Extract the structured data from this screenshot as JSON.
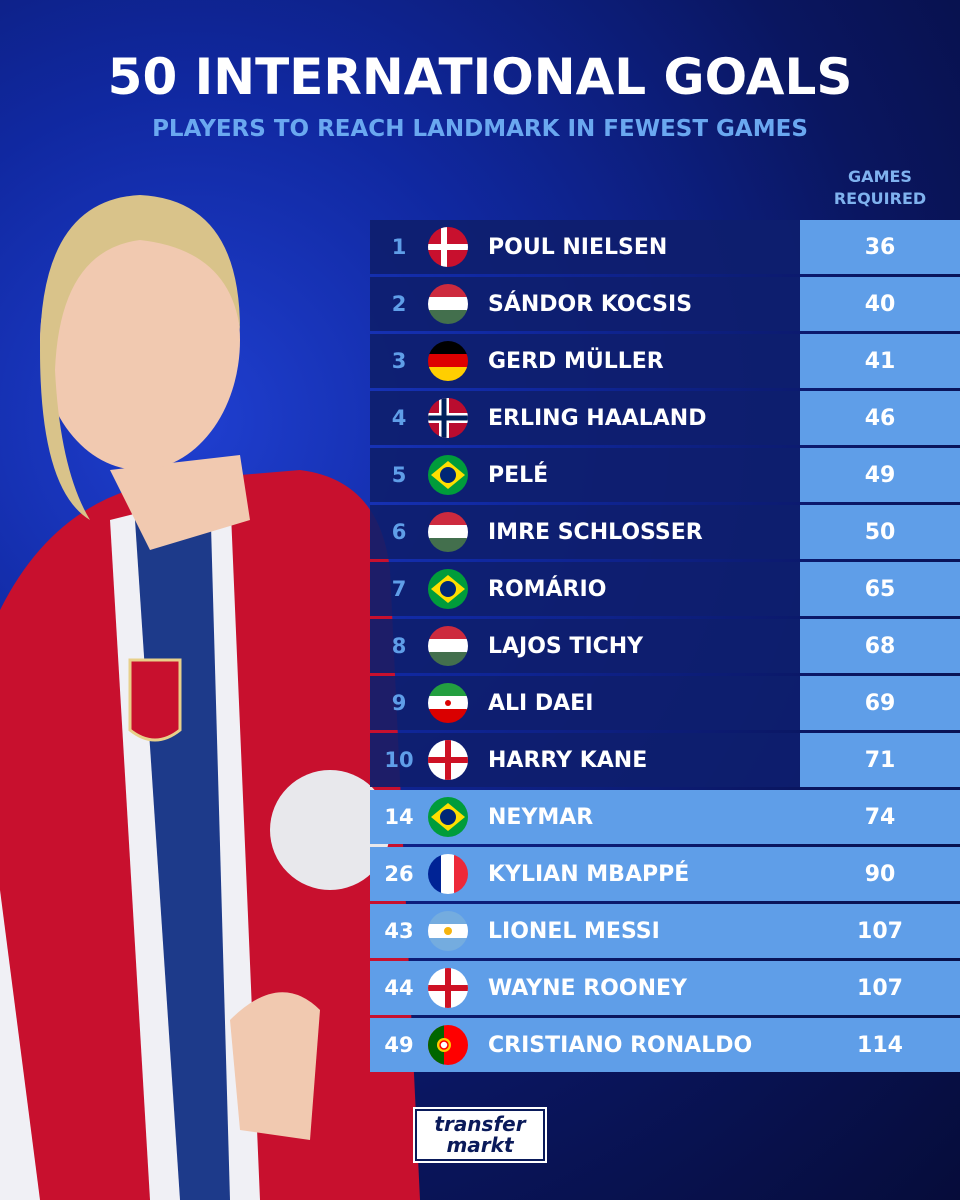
{
  "title": "50 INTERNATIONAL GOALS",
  "subtitle": "PLAYERS TO REACH LANDMARK IN FEWEST GAMES",
  "column_header": [
    "GAMES",
    "REQUIRED"
  ],
  "colors": {
    "accent": "#5f9ee8",
    "dark_row": "#0e1e6e",
    "background": "#1028a0"
  },
  "rows": [
    {
      "rank": "1",
      "flag": "dk",
      "name": "POUL NIELSEN",
      "games": "36",
      "style": "top"
    },
    {
      "rank": "2",
      "flag": "hu",
      "name": "SÁNDOR KOCSIS",
      "games": "40",
      "style": "top"
    },
    {
      "rank": "3",
      "flag": "de",
      "name": "GERD MÜLLER",
      "games": "41",
      "style": "top"
    },
    {
      "rank": "4",
      "flag": "no",
      "name": "ERLING HAALAND",
      "games": "46",
      "style": "top"
    },
    {
      "rank": "5",
      "flag": "br",
      "name": "PELÉ",
      "games": "49",
      "style": "top"
    },
    {
      "rank": "6",
      "flag": "hu",
      "name": "IMRE SCHLOSSER",
      "games": "50",
      "style": "top"
    },
    {
      "rank": "7",
      "flag": "br",
      "name": "ROMÁRIO",
      "games": "65",
      "style": "top"
    },
    {
      "rank": "8",
      "flag": "hu",
      "name": "LAJOS TICHY",
      "games": "68",
      "style": "top"
    },
    {
      "rank": "9",
      "flag": "ir",
      "name": "ALI DAEI",
      "games": "69",
      "style": "top"
    },
    {
      "rank": "10",
      "flag": "en",
      "name": "HARRY KANE",
      "games": "71",
      "style": "top"
    },
    {
      "rank": "14",
      "flag": "br",
      "name": "NEYMAR",
      "games": "74",
      "style": "rest"
    },
    {
      "rank": "26",
      "flag": "fr",
      "name": "KYLIAN MBAPPÉ",
      "games": "90",
      "style": "rest"
    },
    {
      "rank": "43",
      "flag": "ar",
      "name": "LIONEL MESSI",
      "games": "107",
      "style": "rest"
    },
    {
      "rank": "44",
      "flag": "en",
      "name": "WAYNE ROONEY",
      "games": "107",
      "style": "rest"
    },
    {
      "rank": "49",
      "flag": "pt",
      "name": "CRISTIANO RONALDO",
      "games": "114",
      "style": "rest"
    }
  ],
  "logo": {
    "line1": "transfer",
    "line2": "markt"
  }
}
